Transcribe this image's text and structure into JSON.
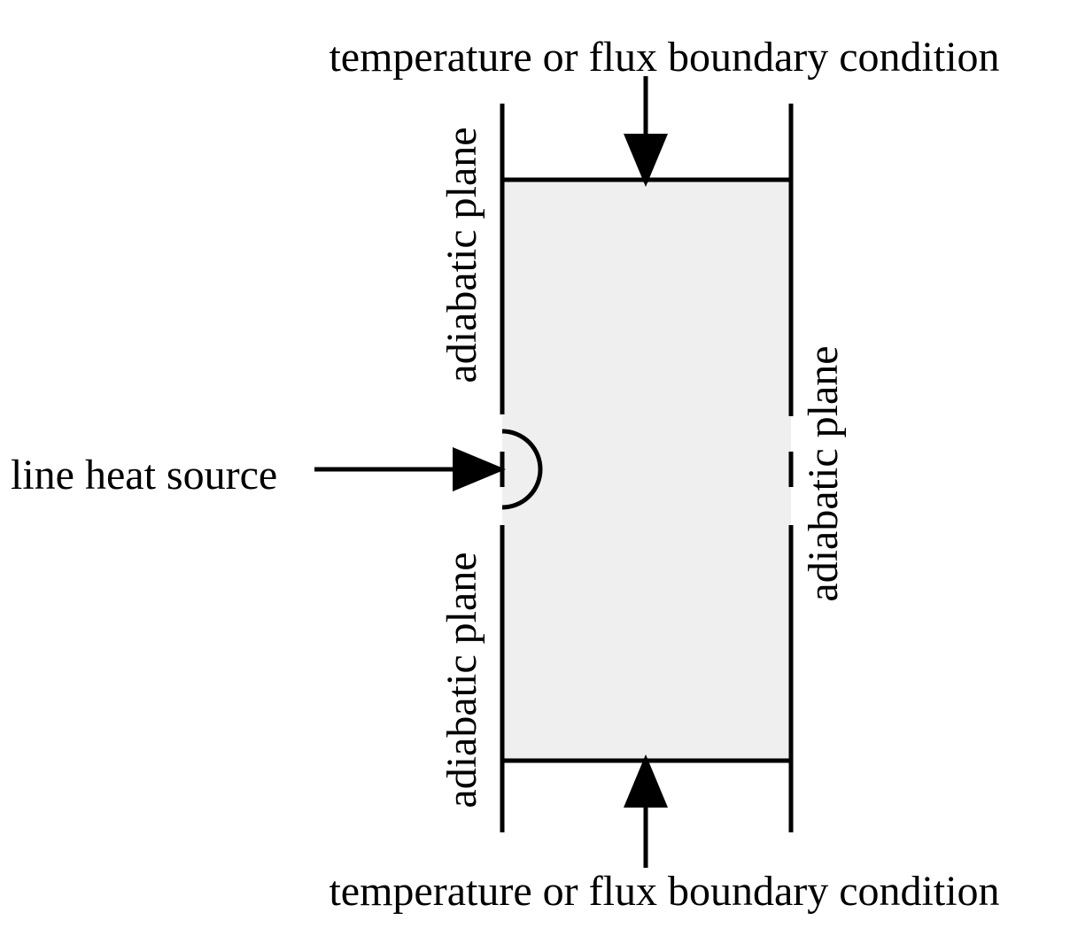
{
  "labels": {
    "top_boundary": "temperature or flux boundary condition",
    "bottom_boundary": "temperature or flux boundary condition",
    "line_source": "line heat source",
    "left_upper_plane": "adiabatic plane",
    "left_lower_plane": "adiabatic plane",
    "right_plane": "adiabatic plane"
  },
  "colors": {
    "domain_fill": "#efefef",
    "stroke": "#000000"
  }
}
